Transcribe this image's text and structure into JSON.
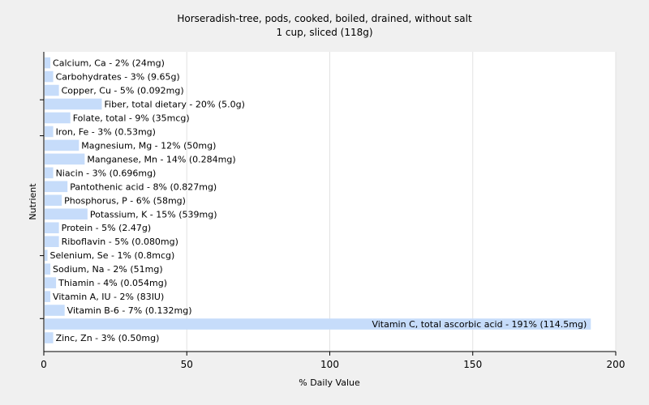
{
  "chart_data": {
    "type": "bar",
    "orientation": "horizontal",
    "title": "Horseradish-tree, pods, cooked, boiled, drained, without salt",
    "subtitle": "1 cup, sliced (118g)",
    "xlabel": "% Daily Value",
    "ylabel": "Nutrient",
    "xlim": [
      0,
      200
    ],
    "xticks": [
      0,
      50,
      100,
      150,
      200
    ],
    "grid": true,
    "bar_color": "#c6dcfa",
    "background": "#ffffff",
    "categories": [
      "Calcium, Ca",
      "Carbohydrates",
      "Copper, Cu",
      "Fiber, total dietary",
      "Folate, total",
      "Iron, Fe",
      "Magnesium, Mg",
      "Manganese, Mn",
      "Niacin",
      "Pantothenic acid",
      "Phosphorus, P",
      "Potassium, K",
      "Protein",
      "Riboflavin",
      "Selenium, Se",
      "Sodium, Na",
      "Thiamin",
      "Vitamin A, IU",
      "Vitamin B-6",
      "Vitamin C, total ascorbic acid",
      "Zinc, Zn"
    ],
    "values": [
      2,
      3,
      5,
      20,
      9,
      3,
      12,
      14,
      3,
      8,
      6,
      15,
      5,
      5,
      1,
      2,
      4,
      2,
      7,
      191,
      3
    ],
    "labels": [
      "Calcium, Ca - 2% (24mg)",
      "Carbohydrates - 3% (9.65g)",
      "Copper, Cu - 5% (0.092mg)",
      "Fiber, total dietary - 20% (5.0g)",
      "Folate, total - 9% (35mcg)",
      "Iron, Fe - 3% (0.53mg)",
      "Magnesium, Mg - 12% (50mg)",
      "Manganese, Mn - 14% (0.284mg)",
      "Niacin - 3% (0.696mg)",
      "Pantothenic acid - 8% (0.827mg)",
      "Phosphorus, P - 6% (58mg)",
      "Potassium, K - 15% (539mg)",
      "Protein - 5% (2.47g)",
      "Riboflavin - 5% (0.080mg)",
      "Selenium, Se - 1% (0.8mcg)",
      "Sodium, Na - 2% (51mg)",
      "Thiamin - 4% (0.054mg)",
      "Vitamin A, IU - 2% (83IU)",
      "Vitamin B-6 - 7% (0.132mg)",
      "Vitamin C, total ascorbic acid - 191% (114.5mg)",
      "Zinc, Zn - 3% (0.50mg)"
    ]
  }
}
